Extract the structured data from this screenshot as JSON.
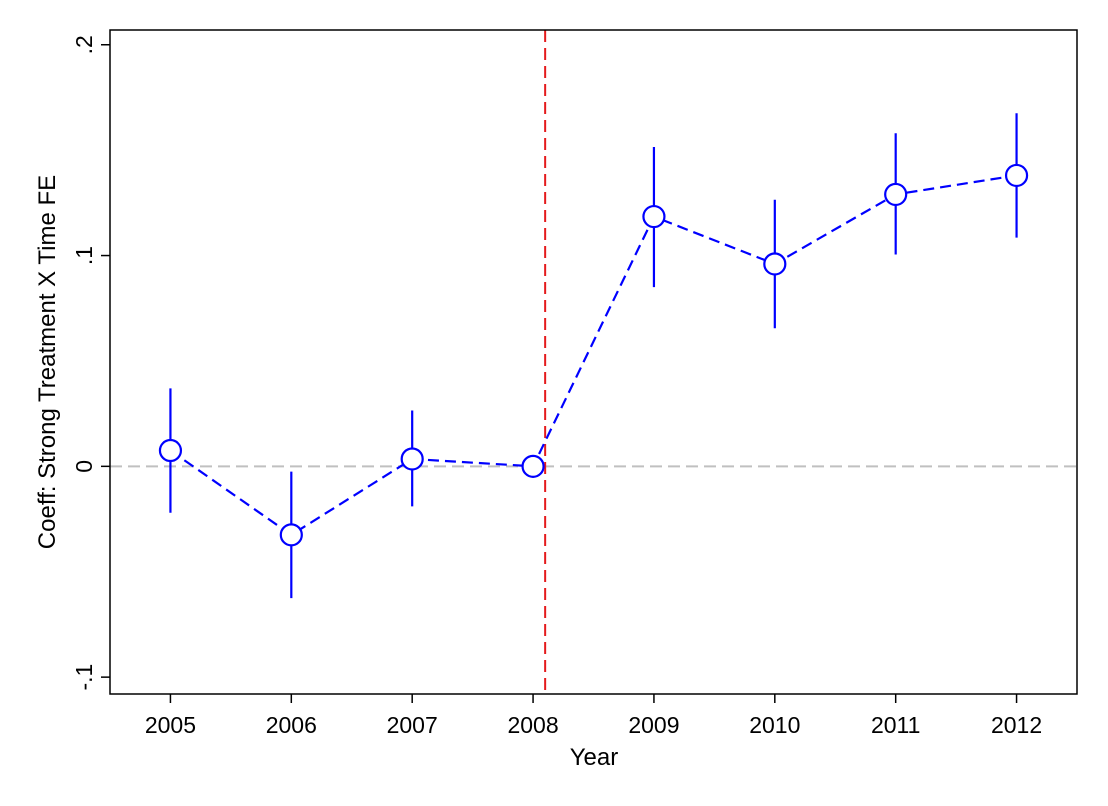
{
  "chart_data": {
    "type": "scatter",
    "title": "",
    "xlabel": "Year",
    "ylabel": "Coeff: Strong Treatment X Time FE",
    "x_ticks": [
      {
        "value": 2005,
        "label": "2005"
      },
      {
        "value": 2006,
        "label": "2006"
      },
      {
        "value": 2007,
        "label": "2007"
      },
      {
        "value": 2008,
        "label": "2008"
      },
      {
        "value": 2009,
        "label": "2009"
      },
      {
        "value": 2010,
        "label": "2010"
      },
      {
        "value": 2011,
        "label": "2011"
      },
      {
        "value": 2012,
        "label": "2012"
      }
    ],
    "y_ticks": [
      {
        "value": -0.1,
        "label": "-.1"
      },
      {
        "value": 0,
        "label": "0"
      },
      {
        "value": 0.1,
        "label": ".1"
      },
      {
        "value": 0.2,
        "label": ".2"
      }
    ],
    "xlim": [
      2004.5,
      2012.5
    ],
    "ylim": [
      -0.108,
      0.207
    ],
    "grid": false,
    "legend": "none",
    "reference_lines": {
      "horizontal_y": 0,
      "vertical_x": 2008.1
    },
    "series": [
      {
        "x": [
          2005,
          2006,
          2007,
          2008,
          2009,
          2010,
          2011,
          2012
        ],
        "y": [
          0.0075,
          -0.0325,
          0.0035,
          0.0,
          0.1185,
          0.096,
          0.129,
          0.138
        ],
        "ci_low": [
          -0.022,
          -0.0625,
          -0.019,
          0.0,
          0.085,
          0.0655,
          0.1005,
          0.1085
        ],
        "ci_high": [
          0.037,
          -0.0025,
          0.0265,
          0.0,
          0.1515,
          0.1265,
          0.158,
          0.1675
        ]
      }
    ],
    "colors": {
      "series": "#0000ff",
      "zero_line": "#c0c0c0",
      "vertical_line": "#e41a1c",
      "frame": "#000000"
    }
  }
}
